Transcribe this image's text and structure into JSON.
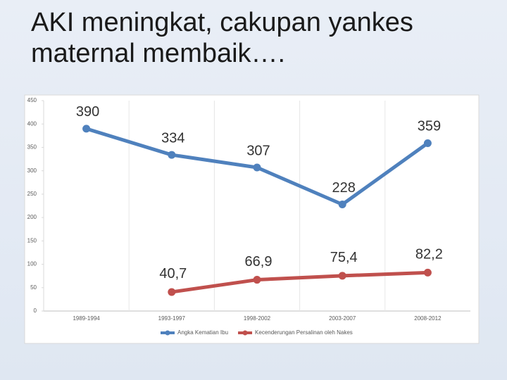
{
  "chart_data": {
    "type": "line",
    "title": "AKI meningkat, cakupan yankes maternal membaik….",
    "categories": [
      "1989-1994",
      "1993-1997",
      "1998-2002",
      "2003-2007",
      "2008-2012"
    ],
    "series": [
      {
        "name": "Angka Kematian Ibu",
        "color": "#4f81bd",
        "values": [
          390,
          334,
          307,
          228,
          359
        ]
      },
      {
        "name": "Kecenderungan Persalinan oleh Nakes",
        "color": "#c0504d",
        "values": [
          null,
          40.7,
          66.9,
          75.4,
          82.2
        ],
        "value_labels": [
          null,
          "40,7",
          "66,9",
          "75,4",
          "82,2"
        ]
      }
    ],
    "ylim": [
      0,
      450
    ],
    "yticks": [
      0,
      50,
      100,
      150,
      200,
      250,
      300,
      350,
      400,
      450
    ],
    "grid": true
  }
}
